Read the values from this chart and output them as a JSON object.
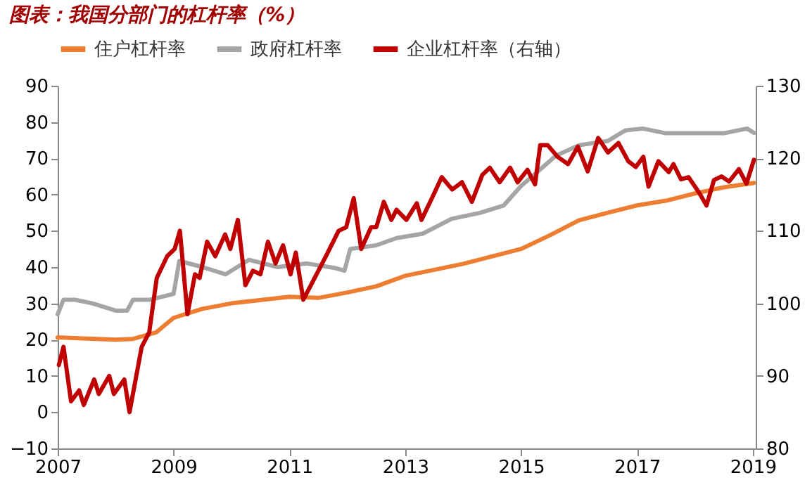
{
  "chart_data": {
    "type": "line",
    "title": "图表：我国分部门的杠杆率（%）",
    "xlim": [
      2007,
      2019.05
    ],
    "xticks": [
      2007,
      2009,
      2011,
      2013,
      2015,
      2017,
      2019
    ],
    "ylim": [
      -10,
      90
    ],
    "yticks": [
      -10,
      0,
      10,
      20,
      30,
      40,
      50,
      60,
      70,
      80,
      90
    ],
    "y2lim": [
      80,
      130
    ],
    "y2ticks": [
      80,
      90,
      100,
      110,
      120,
      130
    ],
    "legend": "top",
    "grid": false,
    "line_style": "solid",
    "marker": "none",
    "series": [
      {
        "name": "住户杠杆率",
        "color": "#ed7d31",
        "x": [
          2007.0,
          2007.5,
          2008.0,
          2008.3,
          2008.7,
          2009.0,
          2009.5,
          2010.0,
          2011.0,
          2011.5,
          2012.0,
          2012.5,
          2013.0,
          2014.0,
          2015.0,
          2015.5,
          2016.0,
          2016.5,
          2017.0,
          2017.5,
          2018.0,
          2018.5,
          2019.02
        ],
        "values": [
          20.6,
          20.3,
          20.0,
          20.2,
          22,
          26,
          28.5,
          30,
          31.8,
          31.5,
          33,
          34.7,
          37.6,
          40.9,
          45,
          48.8,
          52.9,
          55,
          57,
          58.3,
          60.3,
          62,
          63.2
        ]
      },
      {
        "name": "政府杠杆率",
        "color": "#a5a5a5",
        "x": [
          2007.0,
          2007.1,
          2007.3,
          2007.6,
          2008.0,
          2008.2,
          2008.3,
          2008.6,
          2009.0,
          2009.1,
          2009.5,
          2009.9,
          2010.3,
          2010.8,
          2011.3,
          2011.8,
          2011.95,
          2012.05,
          2012.5,
          2012.85,
          2013.3,
          2013.8,
          2014.3,
          2014.7,
          2015.0,
          2015.3,
          2015.6,
          2016.0,
          2016.5,
          2016.8,
          2017.1,
          2017.5,
          2018.0,
          2018.5,
          2018.9,
          2019.02
        ],
        "values": [
          27,
          31,
          31,
          30,
          28,
          28,
          31,
          31,
          32.6,
          41.7,
          40,
          38,
          42,
          40,
          41,
          39.7,
          39,
          45,
          46,
          48,
          49.2,
          53.3,
          55,
          57,
          62.4,
          66.5,
          70.7,
          73.6,
          74.8,
          77.7,
          78.2,
          76.9,
          76.9,
          76.9,
          78.2,
          77
        ]
      },
      {
        "name": "企业杠杆率（右轴）",
        "color": "#c00000",
        "axis": "y2",
        "x": [
          2007.02,
          2007.1,
          2007.23,
          2007.37,
          2007.45,
          2007.63,
          2007.71,
          2007.89,
          2007.97,
          2008.15,
          2008.24,
          2008.45,
          2008.58,
          2008.71,
          2008.89,
          2009.02,
          2009.11,
          2009.24,
          2009.37,
          2009.45,
          2009.58,
          2009.72,
          2009.89,
          2009.98,
          2010.11,
          2010.24,
          2010.37,
          2010.5,
          2010.63,
          2010.76,
          2010.89,
          2011.02,
          2011.11,
          2011.24,
          2011.37,
          2011.63,
          2011.85,
          2011.98,
          2012.11,
          2012.24,
          2012.41,
          2012.5,
          2012.63,
          2012.76,
          2012.85,
          2013.02,
          2013.2,
          2013.28,
          2013.46,
          2013.63,
          2013.81,
          2013.98,
          2014.15,
          2014.33,
          2014.46,
          2014.63,
          2014.81,
          2014.94,
          2015.11,
          2015.24,
          2015.33,
          2015.46,
          2015.63,
          2015.81,
          2015.98,
          2016.15,
          2016.33,
          2016.5,
          2016.68,
          2016.85,
          2016.98,
          2017.11,
          2017.2,
          2017.37,
          2017.55,
          2017.63,
          2017.76,
          2017.89,
          2018.07,
          2018.2,
          2018.33,
          2018.46,
          2018.59,
          2018.76,
          2018.89,
          2019.02
        ],
        "values": [
          91.5,
          94,
          86.5,
          88,
          86,
          89.5,
          87.5,
          90,
          87.5,
          89.5,
          85,
          94,
          96,
          103.5,
          106.5,
          107.5,
          110,
          98.5,
          104,
          103.5,
          108.5,
          106.5,
          109.5,
          107.5,
          111.5,
          102.5,
          104.5,
          104,
          108.5,
          105.5,
          108,
          104,
          107,
          100.5,
          102.5,
          106.5,
          110,
          110.5,
          114.5,
          107.5,
          110.5,
          110.5,
          114,
          111.5,
          112.9,
          111.5,
          113.8,
          111.5,
          114.5,
          117.4,
          115.7,
          116.7,
          114,
          117.7,
          118.7,
          116.7,
          118.7,
          116.7,
          118.4,
          116.4,
          121.8,
          121.8,
          120.2,
          119.2,
          121.6,
          118.2,
          122.8,
          120.8,
          122.1,
          119.6,
          118.8,
          120.2,
          116.1,
          119.6,
          118.1,
          119.2,
          117.1,
          117.4,
          115.3,
          113.5,
          117,
          117.5,
          116.8,
          118.5,
          116.5,
          119.8
        ]
      }
    ]
  }
}
